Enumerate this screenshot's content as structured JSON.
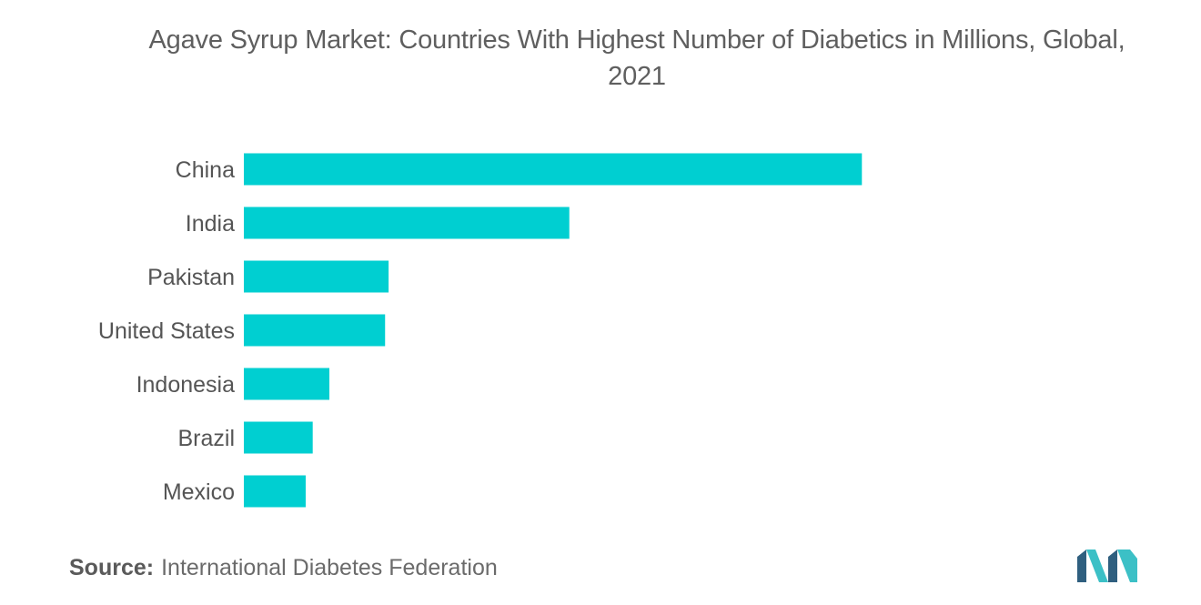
{
  "chart_data": {
    "type": "bar",
    "orientation": "horizontal",
    "title": "Agave Syrup Market: Countries With Highest Number of Diabetics in Millions, Global,",
    "title_line2": "2021",
    "xlabel": "",
    "ylabel": "",
    "categories": [
      "China",
      "India",
      "Pakistan",
      "United States",
      "Indonesia",
      "Brazil",
      "Mexico"
    ],
    "values": [
      140.9,
      74.2,
      33.0,
      32.2,
      19.5,
      15.7,
      14.1
    ],
    "xlim": [
      0,
      190
    ],
    "grid": false,
    "legend": "none",
    "bar_color": "#00CFD1"
  },
  "footer": {
    "source_label": "Source:",
    "source_text": "International Diabetes Federation"
  },
  "colors": {
    "title": "#5f5f5f",
    "category_label": "#555555",
    "logo_dark": "#2F5F7F",
    "logo_light": "#3CC0C6"
  }
}
